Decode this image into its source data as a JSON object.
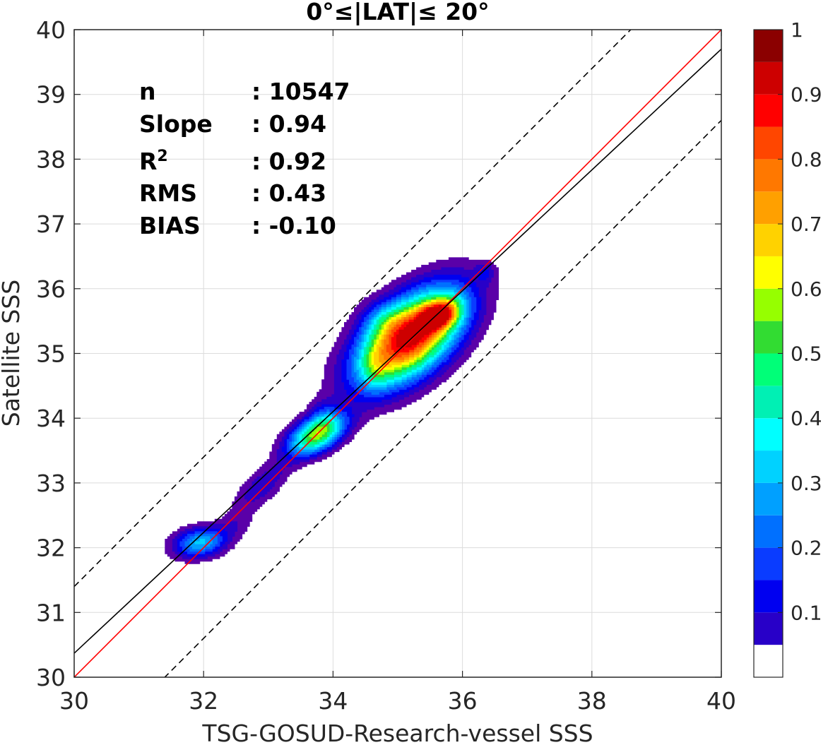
{
  "chart_data": {
    "type": "contour",
    "title": "0°≤|LAT|≤ 20°",
    "xlabel": "TSG-GOSUD-Research-vessel SSS",
    "ylabel": "Satellite SSS",
    "xlim": [
      30,
      40
    ],
    "ylim": [
      30,
      40
    ],
    "xticks": [
      30,
      32,
      34,
      36,
      38,
      40
    ],
    "yticks": [
      30,
      31,
      32,
      33,
      34,
      35,
      36,
      37,
      38,
      39,
      40
    ],
    "grid": true,
    "stats": [
      {
        "label": "n",
        "value": ": 10547"
      },
      {
        "label": "Slope",
        "value": ": 0.94"
      },
      {
        "label": "R",
        "sup": "2",
        "value": ": 0.92"
      },
      {
        "label": "RMS",
        "value": ": 0.43"
      },
      {
        "label": "BIAS",
        "value": ": -0.10"
      }
    ],
    "lines": [
      {
        "name": "one-to-one",
        "color": "#ff0000",
        "style": "solid",
        "x": [
          30,
          40
        ],
        "y": [
          30,
          40
        ]
      },
      {
        "name": "regression",
        "color": "#000000",
        "style": "solid",
        "x": [
          30,
          40
        ],
        "y": [
          30.37,
          39.7
        ]
      },
      {
        "name": "upper-bound",
        "color": "#000000",
        "style": "dashed",
        "x": [
          30,
          40
        ],
        "y": [
          31.4,
          41.4
        ]
      },
      {
        "name": "lower-bound",
        "color": "#000000",
        "style": "dashed",
        "x": [
          30,
          40
        ],
        "y": [
          28.6,
          38.6
        ]
      }
    ],
    "density_peaks": [
      {
        "x": 35.2,
        "y": 35.25,
        "peak": 1.0,
        "sx": 0.55,
        "sy": 0.5,
        "rho": 0.55
      },
      {
        "x": 35.65,
        "y": 35.6,
        "peak": 0.55,
        "sx": 0.2,
        "sy": 0.15,
        "rho": 0.3
      },
      {
        "x": 34.8,
        "y": 35.5,
        "peak": 0.15,
        "sx": 0.25,
        "sy": 0.2,
        "rho": 0.0
      },
      {
        "x": 34.65,
        "y": 34.8,
        "peak": 0.12,
        "sx": 0.15,
        "sy": 0.25,
        "rho": 0.0
      },
      {
        "x": 33.75,
        "y": 33.75,
        "peak": 0.62,
        "sx": 0.3,
        "sy": 0.22,
        "rho": 0.5
      },
      {
        "x": 33.85,
        "y": 34.05,
        "peak": 0.08,
        "sx": 0.15,
        "sy": 0.2,
        "rho": 0.0
      },
      {
        "x": 32.9,
        "y": 32.95,
        "peak": 0.14,
        "sx": 0.3,
        "sy": 0.28,
        "rho": 0.7
      },
      {
        "x": 31.95,
        "y": 32.08,
        "peak": 0.36,
        "sx": 0.28,
        "sy": 0.16,
        "rho": 0.2
      },
      {
        "x": 32.5,
        "y": 32.35,
        "peak": 0.07,
        "sx": 0.2,
        "sy": 0.15,
        "rho": 0.3
      },
      {
        "x": 36.35,
        "y": 36.25,
        "peak": 0.12,
        "sx": 0.1,
        "sy": 0.1,
        "rho": 0.0
      }
    ],
    "colorbar": {
      "range": [
        0,
        1
      ],
      "ticks": [
        0.1,
        0.2,
        0.3,
        0.4,
        0.5,
        0.6,
        0.7,
        0.8,
        0.9,
        1
      ],
      "tick_labels": [
        "0.1",
        "0.2",
        "0.3",
        "0.4",
        "0.5",
        "0.6",
        "0.7",
        "0.8",
        "0.9",
        "1"
      ],
      "levels": [
        0,
        0.05,
        0.1,
        0.15,
        0.2,
        0.25,
        0.3,
        0.35,
        0.4,
        0.45,
        0.5,
        0.55,
        0.6,
        0.65,
        0.7,
        0.75,
        0.8,
        0.85,
        0.9,
        0.95,
        1.0
      ],
      "colors": [
        "#ffffff",
        "#5a00a8",
        "#2800c8",
        "#0000f0",
        "#0a3cff",
        "#0070ff",
        "#00a0ff",
        "#00d2ff",
        "#00ffff",
        "#00f0b4",
        "#00ff78",
        "#32dc32",
        "#96ff00",
        "#ffff00",
        "#ffd200",
        "#ffa000",
        "#ff7800",
        "#ff4600",
        "#ff0000",
        "#cd0000",
        "#8b0000"
      ]
    }
  }
}
